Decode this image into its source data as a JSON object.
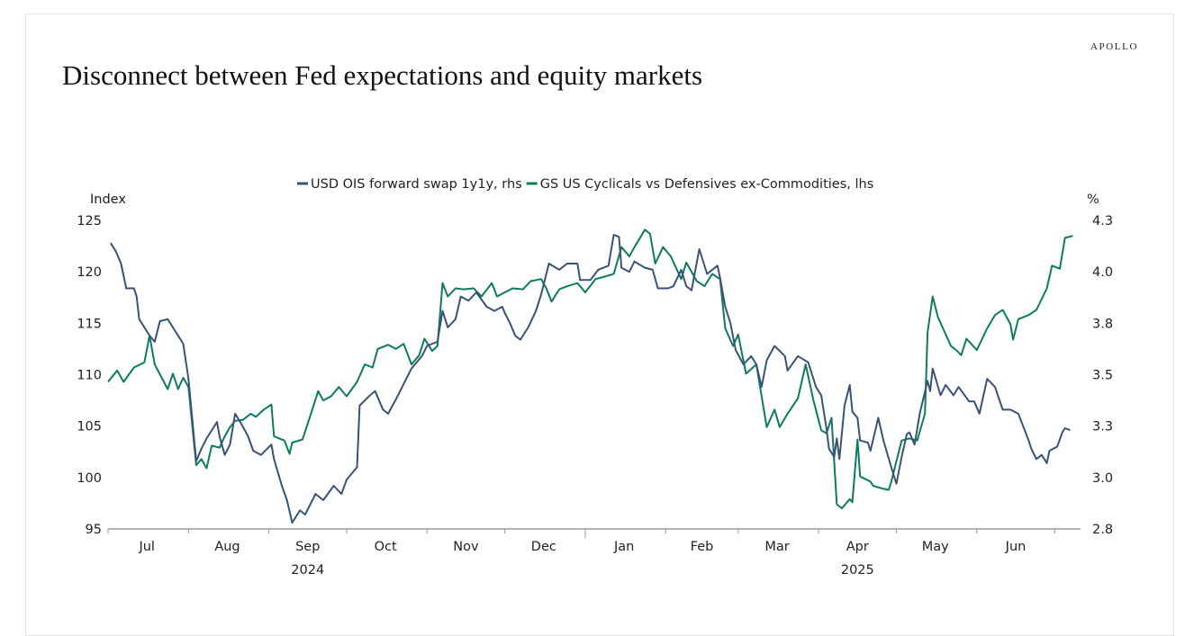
{
  "brand": "APOLLO",
  "title": "Disconnect between Fed expectations and equity markets",
  "chart_data": {
    "type": "line",
    "title": "Disconnect between Fed expectations and equity markets",
    "x_origin": "2024-07-01",
    "x_unit": "days since 2024-07-01",
    "xlim": [
      0,
      375
    ],
    "month_ticks": [
      0,
      31,
      62,
      92,
      123,
      153,
      184,
      215,
      243,
      274,
      304,
      335,
      365
    ],
    "month_labels": [
      {
        "label": "Jul",
        "day": 15
      },
      {
        "label": "Aug",
        "day": 46
      },
      {
        "label": "Sep",
        "day": 77
      },
      {
        "label": "Oct",
        "day": 107
      },
      {
        "label": "Nov",
        "day": 138
      },
      {
        "label": "Dec",
        "day": 168
      },
      {
        "label": "Jan",
        "day": 199
      },
      {
        "label": "Feb",
        "day": 229
      },
      {
        "label": "Mar",
        "day": 258
      },
      {
        "label": "Apr",
        "day": 289
      },
      {
        "label": "May",
        "day": 319
      },
      {
        "label": "Jun",
        "day": 350
      }
    ],
    "year_labels": [
      {
        "label": "2024",
        "day": 77
      },
      {
        "label": "2025",
        "day": 289
      }
    ],
    "ylabel_left": "Index",
    "ylabel_right": "%",
    "ylim_left": [
      95,
      125
    ],
    "ylim_right": [
      2.8,
      4.3
    ],
    "yticks_left": [
      "125",
      "120",
      "115",
      "110",
      "105",
      "100",
      "95"
    ],
    "yticks_right": [
      "4.3",
      "4.0",
      "3.8",
      "3.5",
      "3.3",
      "3.0",
      "2.8"
    ],
    "legend_position": "top-center",
    "grid": false,
    "series": [
      {
        "name": "USD OIS forward swap 1y1y, rhs",
        "axis": "right",
        "color": "#3a5275",
        "points": [
          [
            1,
            4.19
          ],
          [
            3,
            4.15
          ],
          [
            5,
            4.09
          ],
          [
            7,
            3.97
          ],
          [
            10,
            3.97
          ],
          [
            11,
            3.93
          ],
          [
            12,
            3.82
          ],
          [
            16,
            3.74
          ],
          [
            18,
            3.71
          ],
          [
            20,
            3.81
          ],
          [
            23,
            3.82
          ],
          [
            26,
            3.76
          ],
          [
            29,
            3.7
          ],
          [
            31,
            3.53
          ],
          [
            34,
            3.13
          ],
          [
            36,
            3.19
          ],
          [
            38,
            3.24
          ],
          [
            42,
            3.32
          ],
          [
            43,
            3.25
          ],
          [
            45,
            3.16
          ],
          [
            47,
            3.21
          ],
          [
            49,
            3.36
          ],
          [
            51,
            3.32
          ],
          [
            54,
            3.25
          ],
          [
            56,
            3.18
          ],
          [
            59,
            3.16
          ],
          [
            63,
            3.21
          ],
          [
            64,
            3.14
          ],
          [
            67,
            3.01
          ],
          [
            69,
            2.94
          ],
          [
            71,
            2.83
          ],
          [
            74,
            2.89
          ],
          [
            76,
            2.87
          ],
          [
            80,
            2.97
          ],
          [
            83,
            2.94
          ],
          [
            87,
            3.01
          ],
          [
            90,
            2.97
          ],
          [
            92,
            3.04
          ],
          [
            96,
            3.1
          ],
          [
            97,
            3.4
          ],
          [
            101,
            3.45
          ],
          [
            103,
            3.47
          ],
          [
            106,
            3.38
          ],
          [
            108,
            3.36
          ],
          [
            111,
            3.43
          ],
          [
            115,
            3.53
          ],
          [
            117,
            3.58
          ],
          [
            121,
            3.64
          ],
          [
            123,
            3.69
          ],
          [
            127,
            3.71
          ],
          [
            129,
            3.86
          ],
          [
            131,
            3.78
          ],
          [
            134,
            3.82
          ],
          [
            136,
            3.93
          ],
          [
            139,
            3.91
          ],
          [
            142,
            3.95
          ],
          [
            146,
            3.88
          ],
          [
            149,
            3.86
          ],
          [
            152,
            3.88
          ],
          [
            153,
            3.85
          ],
          [
            155,
            3.8
          ],
          [
            157,
            3.74
          ],
          [
            159,
            3.72
          ],
          [
            162,
            3.78
          ],
          [
            165,
            3.86
          ],
          [
            167,
            3.94
          ],
          [
            170,
            4.09
          ],
          [
            174,
            4.06
          ],
          [
            177,
            4.09
          ],
          [
            181,
            4.09
          ],
          [
            182,
            4.01
          ],
          [
            186,
            4.01
          ],
          [
            189,
            4.06
          ],
          [
            193,
            4.08
          ],
          [
            195,
            4.23
          ],
          [
            197,
            4.22
          ],
          [
            198,
            4.07
          ],
          [
            201,
            4.05
          ],
          [
            203,
            4.1
          ],
          [
            207,
            4.07
          ],
          [
            210,
            4.06
          ],
          [
            212,
            3.97
          ],
          [
            216,
            3.97
          ],
          [
            218,
            3.98
          ],
          [
            221,
            4.06
          ],
          [
            223,
            3.98
          ],
          [
            225,
            3.96
          ],
          [
            228,
            4.16
          ],
          [
            231,
            4.04
          ],
          [
            235,
            4.08
          ],
          [
            236,
            4.02
          ],
          [
            238,
            3.88
          ],
          [
            240,
            3.8
          ],
          [
            242,
            3.67
          ],
          [
            245,
            3.6
          ],
          [
            248,
            3.64
          ],
          [
            250,
            3.6
          ],
          [
            252,
            3.49
          ],
          [
            254,
            3.62
          ],
          [
            257,
            3.69
          ],
          [
            261,
            3.64
          ],
          [
            262,
            3.57
          ],
          [
            266,
            3.64
          ],
          [
            270,
            3.61
          ],
          [
            273,
            3.49
          ],
          [
            275,
            3.45
          ],
          [
            277,
            3.29
          ],
          [
            278,
            3.19
          ],
          [
            280,
            3.15
          ],
          [
            281,
            3.24
          ],
          [
            282,
            3.14
          ],
          [
            284,
            3.4
          ],
          [
            286,
            3.5
          ],
          [
            287,
            3.37
          ],
          [
            289,
            3.34
          ],
          [
            290,
            3.23
          ],
          [
            293,
            3.22
          ],
          [
            294,
            3.18
          ],
          [
            297,
            3.34
          ],
          [
            299,
            3.23
          ],
          [
            302,
            3.1
          ],
          [
            304,
            3.02
          ],
          [
            306,
            3.15
          ],
          [
            308,
            3.26
          ],
          [
            309,
            3.27
          ],
          [
            311,
            3.21
          ],
          [
            313,
            3.36
          ],
          [
            316,
            3.52
          ],
          [
            317,
            3.47
          ],
          [
            318,
            3.58
          ],
          [
            321,
            3.45
          ],
          [
            323,
            3.5
          ],
          [
            326,
            3.45
          ],
          [
            328,
            3.49
          ],
          [
            332,
            3.42
          ],
          [
            334,
            3.42
          ],
          [
            336,
            3.36
          ],
          [
            339,
            3.53
          ],
          [
            342,
            3.49
          ],
          [
            345,
            3.38
          ],
          [
            348,
            3.38
          ],
          [
            351,
            3.36
          ],
          [
            355,
            3.23
          ],
          [
            356,
            3.19
          ],
          [
            358,
            3.14
          ],
          [
            360,
            3.16
          ],
          [
            362,
            3.12
          ],
          [
            363,
            3.18
          ],
          [
            366,
            3.2
          ],
          [
            368,
            3.27
          ],
          [
            369,
            3.29
          ],
          [
            371,
            3.28
          ]
        ]
      },
      {
        "name": "GS US Cyclicals vs Defensives ex-Commodities, lhs",
        "axis": "left",
        "color": "#0e7a5f",
        "points": [
          [
            0,
            109.3
          ],
          [
            3.5,
            110.4
          ],
          [
            6,
            109.3
          ],
          [
            10,
            110.7
          ],
          [
            14,
            111.2
          ],
          [
            16,
            113.8
          ],
          [
            18,
            111.0
          ],
          [
            23,
            108.6
          ],
          [
            25,
            110.1
          ],
          [
            27,
            108.6
          ],
          [
            29,
            109.7
          ],
          [
            31,
            108.8
          ],
          [
            34,
            101.2
          ],
          [
            36,
            101.8
          ],
          [
            38,
            100.9
          ],
          [
            40,
            103.1
          ],
          [
            43,
            102.9
          ],
          [
            45,
            104.0
          ],
          [
            47,
            104.9
          ],
          [
            49,
            105.5
          ],
          [
            52,
            105.6
          ],
          [
            55,
            106.2
          ],
          [
            57,
            105.9
          ],
          [
            60,
            106.6
          ],
          [
            63,
            107.1
          ],
          [
            64,
            104.0
          ],
          [
            68,
            103.6
          ],
          [
            70,
            102.3
          ],
          [
            71,
            103.4
          ],
          [
            75,
            103.7
          ],
          [
            78,
            106.0
          ],
          [
            81,
            108.4
          ],
          [
            83,
            107.5
          ],
          [
            86,
            107.9
          ],
          [
            89,
            108.8
          ],
          [
            92,
            107.9
          ],
          [
            96,
            109.3
          ],
          [
            99,
            111.0
          ],
          [
            102,
            110.7
          ],
          [
            104,
            112.5
          ],
          [
            108,
            112.9
          ],
          [
            111,
            112.5
          ],
          [
            114,
            113.0
          ],
          [
            117,
            111.0
          ],
          [
            120,
            111.9
          ],
          [
            122,
            113.5
          ],
          [
            125,
            112.3
          ],
          [
            127,
            112.8
          ],
          [
            129,
            118.9
          ],
          [
            131,
            117.6
          ],
          [
            134,
            118.4
          ],
          [
            137,
            118.3
          ],
          [
            141,
            118.4
          ],
          [
            144,
            117.6
          ],
          [
            148,
            118.9
          ],
          [
            150,
            117.6
          ],
          [
            153,
            118.0
          ],
          [
            156,
            118.4
          ],
          [
            160,
            118.3
          ],
          [
            163,
            119.1
          ],
          [
            167,
            119.3
          ],
          [
            169,
            118.4
          ],
          [
            171,
            117.1
          ],
          [
            174,
            118.3
          ],
          [
            177,
            118.6
          ],
          [
            181,
            118.9
          ],
          [
            184,
            118.0
          ],
          [
            188,
            119.3
          ],
          [
            191,
            119.5
          ],
          [
            195,
            119.8
          ],
          [
            198,
            122.4
          ],
          [
            201,
            121.5
          ],
          [
            203,
            122.4
          ],
          [
            207,
            124.1
          ],
          [
            209,
            123.7
          ],
          [
            211,
            120.8
          ],
          [
            214,
            122.4
          ],
          [
            217,
            121.5
          ],
          [
            221,
            119.3
          ],
          [
            223,
            120.9
          ],
          [
            227,
            119.1
          ],
          [
            230,
            118.6
          ],
          [
            233,
            119.8
          ],
          [
            236,
            119.3
          ],
          [
            238,
            114.5
          ],
          [
            241,
            112.8
          ],
          [
            243,
            113.9
          ],
          [
            246,
            110.1
          ],
          [
            250,
            111.0
          ],
          [
            252,
            107.9
          ],
          [
            254,
            104.9
          ],
          [
            257,
            106.6
          ],
          [
            259,
            104.9
          ],
          [
            262,
            106.2
          ],
          [
            266,
            107.7
          ],
          [
            269,
            111.0
          ],
          [
            272,
            107.5
          ],
          [
            275,
            104.6
          ],
          [
            277,
            104.3
          ],
          [
            279,
            105.8
          ],
          [
            281,
            97.4
          ],
          [
            283,
            97.0
          ],
          [
            286,
            97.9
          ],
          [
            287,
            97.6
          ],
          [
            289,
            103.7
          ],
          [
            290,
            100.1
          ],
          [
            294,
            99.6
          ],
          [
            295,
            99.2
          ],
          [
            299,
            98.9
          ],
          [
            301,
            98.8
          ],
          [
            302,
            99.6
          ],
          [
            306,
            103.6
          ],
          [
            309,
            103.8
          ],
          [
            312,
            103.6
          ],
          [
            315,
            106.2
          ],
          [
            316,
            114.1
          ],
          [
            318,
            117.6
          ],
          [
            320,
            115.6
          ],
          [
            325,
            112.8
          ],
          [
            327,
            112.4
          ],
          [
            329,
            111.9
          ],
          [
            331,
            113.5
          ],
          [
            335,
            112.4
          ],
          [
            339,
            114.5
          ],
          [
            342,
            115.8
          ],
          [
            345,
            116.3
          ],
          [
            348,
            114.9
          ],
          [
            349,
            113.4
          ],
          [
            351,
            115.4
          ],
          [
            355,
            115.8
          ],
          [
            358,
            116.3
          ],
          [
            362,
            118.4
          ],
          [
            364,
            120.6
          ],
          [
            367,
            120.3
          ],
          [
            369,
            123.3
          ],
          [
            372,
            123.5
          ]
        ]
      }
    ]
  }
}
